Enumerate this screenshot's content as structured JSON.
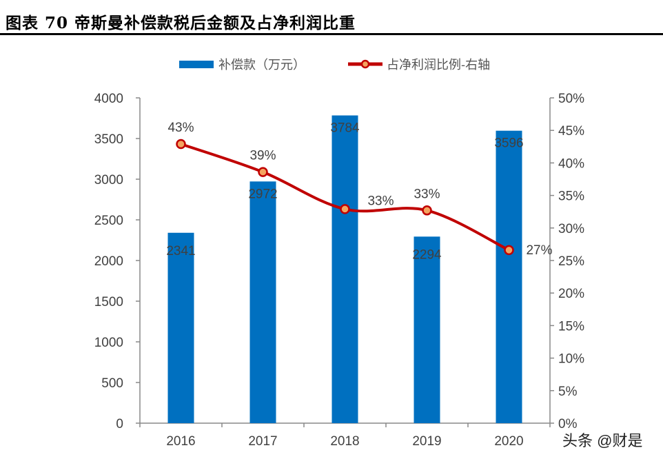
{
  "title": "图表 70 帝斯曼补偿款税后金额及占净利润比重",
  "watermark": "头条 @财是",
  "colors": {
    "bar": "#0070C0",
    "line": "#C00000",
    "marker_fill": "#F4A460",
    "axis": "#888888",
    "text": "#404040"
  },
  "chart_data": {
    "type": "bar+line",
    "categories": [
      "2016",
      "2017",
      "2018",
      "2019",
      "2020"
    ],
    "series": [
      {
        "name": "补偿款（万元）",
        "type": "bar",
        "axis": "left",
        "values": [
          2341,
          2972,
          3784,
          2294,
          3596
        ],
        "labels": [
          "2341",
          "2972",
          "3784",
          "2294",
          "3596"
        ]
      },
      {
        "name": "占净利润比例-右轴",
        "type": "line",
        "axis": "right",
        "smooth": true,
        "values": [
          42.9,
          38.6,
          32.9,
          32.7,
          26.6
        ],
        "labels": [
          "43%",
          "39%",
          "33%",
          "33%",
          "27%"
        ]
      }
    ],
    "left_axis": {
      "range": [
        0,
        4000
      ],
      "ticks": [
        "0",
        "500",
        "1000",
        "1500",
        "2000",
        "2500",
        "3000",
        "3500",
        "4000"
      ]
    },
    "right_axis": {
      "range": [
        0,
        50
      ],
      "ticks": [
        "0%",
        "5%",
        "10%",
        "15%",
        "20%",
        "25%",
        "30%",
        "35%",
        "40%",
        "45%",
        "50%"
      ]
    },
    "legend": {
      "placement": "top",
      "entries": [
        "补偿款（万元）",
        "占净利润比例-右轴"
      ]
    },
    "grid": false
  }
}
